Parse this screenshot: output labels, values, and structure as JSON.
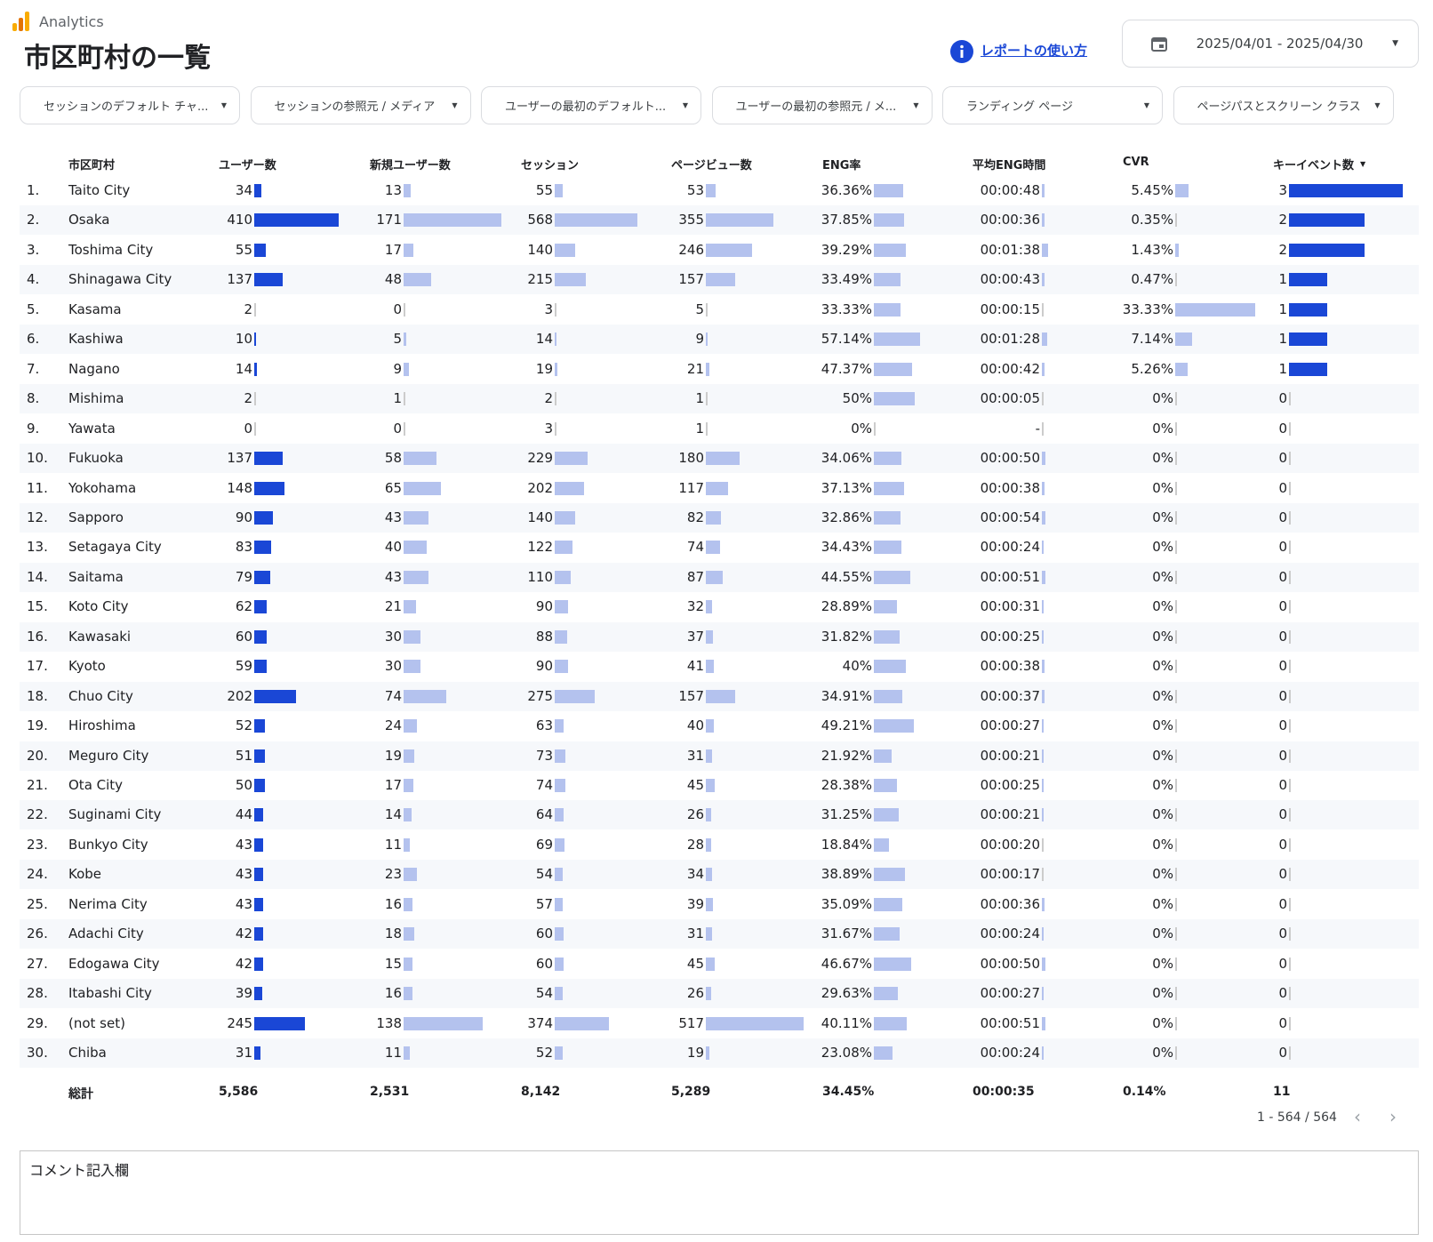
{
  "header": {
    "app": "Analytics",
    "title": "市区町村の一覧",
    "help_link": "レポートの使い方",
    "date_range": "2025/04/01 - 2025/04/30"
  },
  "filters": [
    "セッションのデフォルト チャ...",
    "セッションの参照元 / メディア",
    "ユーザーの最初のデフォルト...",
    "ユーザーの最初の参照元 / メ...",
    "ランディング ページ",
    "ページパスとスクリーン クラス"
  ],
  "table": {
    "columns": [
      "市区町村",
      "ユーザー数",
      "新規ユーザー数",
      "セッション",
      "ページビュー数",
      "ENG率",
      "平均ENG時間",
      "CVR",
      "キーイベント数"
    ],
    "rows": [
      [
        "1.",
        "Taito City",
        "34",
        "13",
        "55",
        "53",
        "36.36%",
        "00:00:48",
        "5.45%",
        "3"
      ],
      [
        "2.",
        "Osaka",
        "410",
        "171",
        "568",
        "355",
        "37.85%",
        "00:00:36",
        "0.35%",
        "2"
      ],
      [
        "3.",
        "Toshima City",
        "55",
        "17",
        "140",
        "246",
        "39.29%",
        "00:01:38",
        "1.43%",
        "2"
      ],
      [
        "4.",
        "Shinagawa City",
        "137",
        "48",
        "215",
        "157",
        "33.49%",
        "00:00:43",
        "0.47%",
        "1"
      ],
      [
        "5.",
        "Kasama",
        "2",
        "0",
        "3",
        "5",
        "33.33%",
        "00:00:15",
        "33.33%",
        "1"
      ],
      [
        "6.",
        "Kashiwa",
        "10",
        "5",
        "14",
        "9",
        "57.14%",
        "00:01:28",
        "7.14%",
        "1"
      ],
      [
        "7.",
        "Nagano",
        "14",
        "9",
        "19",
        "21",
        "47.37%",
        "00:00:42",
        "5.26%",
        "1"
      ],
      [
        "8.",
        "Mishima",
        "2",
        "1",
        "2",
        "1",
        "50%",
        "00:00:05",
        "0%",
        "0"
      ],
      [
        "9.",
        "Yawata",
        "0",
        "0",
        "3",
        "1",
        "0%",
        "-",
        "0%",
        "0"
      ],
      [
        "10.",
        "Fukuoka",
        "137",
        "58",
        "229",
        "180",
        "34.06%",
        "00:00:50",
        "0%",
        "0"
      ],
      [
        "11.",
        "Yokohama",
        "148",
        "65",
        "202",
        "117",
        "37.13%",
        "00:00:38",
        "0%",
        "0"
      ],
      [
        "12.",
        "Sapporo",
        "90",
        "43",
        "140",
        "82",
        "32.86%",
        "00:00:54",
        "0%",
        "0"
      ],
      [
        "13.",
        "Setagaya City",
        "83",
        "40",
        "122",
        "74",
        "34.43%",
        "00:00:24",
        "0%",
        "0"
      ],
      [
        "14.",
        "Saitama",
        "79",
        "43",
        "110",
        "87",
        "44.55%",
        "00:00:51",
        "0%",
        "0"
      ],
      [
        "15.",
        "Koto City",
        "62",
        "21",
        "90",
        "32",
        "28.89%",
        "00:00:31",
        "0%",
        "0"
      ],
      [
        "16.",
        "Kawasaki",
        "60",
        "30",
        "88",
        "37",
        "31.82%",
        "00:00:25",
        "0%",
        "0"
      ],
      [
        "17.",
        "Kyoto",
        "59",
        "30",
        "90",
        "41",
        "40%",
        "00:00:38",
        "0%",
        "0"
      ],
      [
        "18.",
        "Chuo City",
        "202",
        "74",
        "275",
        "157",
        "34.91%",
        "00:00:37",
        "0%",
        "0"
      ],
      [
        "19.",
        "Hiroshima",
        "52",
        "24",
        "63",
        "40",
        "49.21%",
        "00:00:27",
        "0%",
        "0"
      ],
      [
        "20.",
        "Meguro City",
        "51",
        "19",
        "73",
        "31",
        "21.92%",
        "00:00:21",
        "0%",
        "0"
      ],
      [
        "21.",
        "Ota City",
        "50",
        "17",
        "74",
        "45",
        "28.38%",
        "00:00:25",
        "0%",
        "0"
      ],
      [
        "22.",
        "Suginami City",
        "44",
        "14",
        "64",
        "26",
        "31.25%",
        "00:00:21",
        "0%",
        "0"
      ],
      [
        "23.",
        "Bunkyo City",
        "43",
        "11",
        "69",
        "28",
        "18.84%",
        "00:00:20",
        "0%",
        "0"
      ],
      [
        "24.",
        "Kobe",
        "43",
        "23",
        "54",
        "34",
        "38.89%",
        "00:00:17",
        "0%",
        "0"
      ],
      [
        "25.",
        "Nerima City",
        "43",
        "16",
        "57",
        "39",
        "35.09%",
        "00:00:36",
        "0%",
        "0"
      ],
      [
        "26.",
        "Adachi City",
        "42",
        "18",
        "60",
        "31",
        "31.67%",
        "00:00:24",
        "0%",
        "0"
      ],
      [
        "27.",
        "Edogawa City",
        "42",
        "15",
        "60",
        "45",
        "46.67%",
        "00:00:50",
        "0%",
        "0"
      ],
      [
        "28.",
        "Itabashi City",
        "39",
        "16",
        "54",
        "26",
        "29.63%",
        "00:00:27",
        "0%",
        "0"
      ],
      [
        "29.",
        "(not set)",
        "245",
        "138",
        "374",
        "517",
        "40.11%",
        "00:00:51",
        "0%",
        "0"
      ],
      [
        "30.",
        "Chiba",
        "31",
        "11",
        "52",
        "19",
        "23.08%",
        "00:00:24",
        "0%",
        "0"
      ]
    ],
    "totals": [
      "総計",
      "5,586",
      "2,531",
      "8,142",
      "5,289",
      "34.45%",
      "00:00:35",
      "0.14%",
      "11"
    ],
    "pagination": "1 - 564 / 564"
  },
  "comment": {
    "title": "コメント記入欄"
  }
}
